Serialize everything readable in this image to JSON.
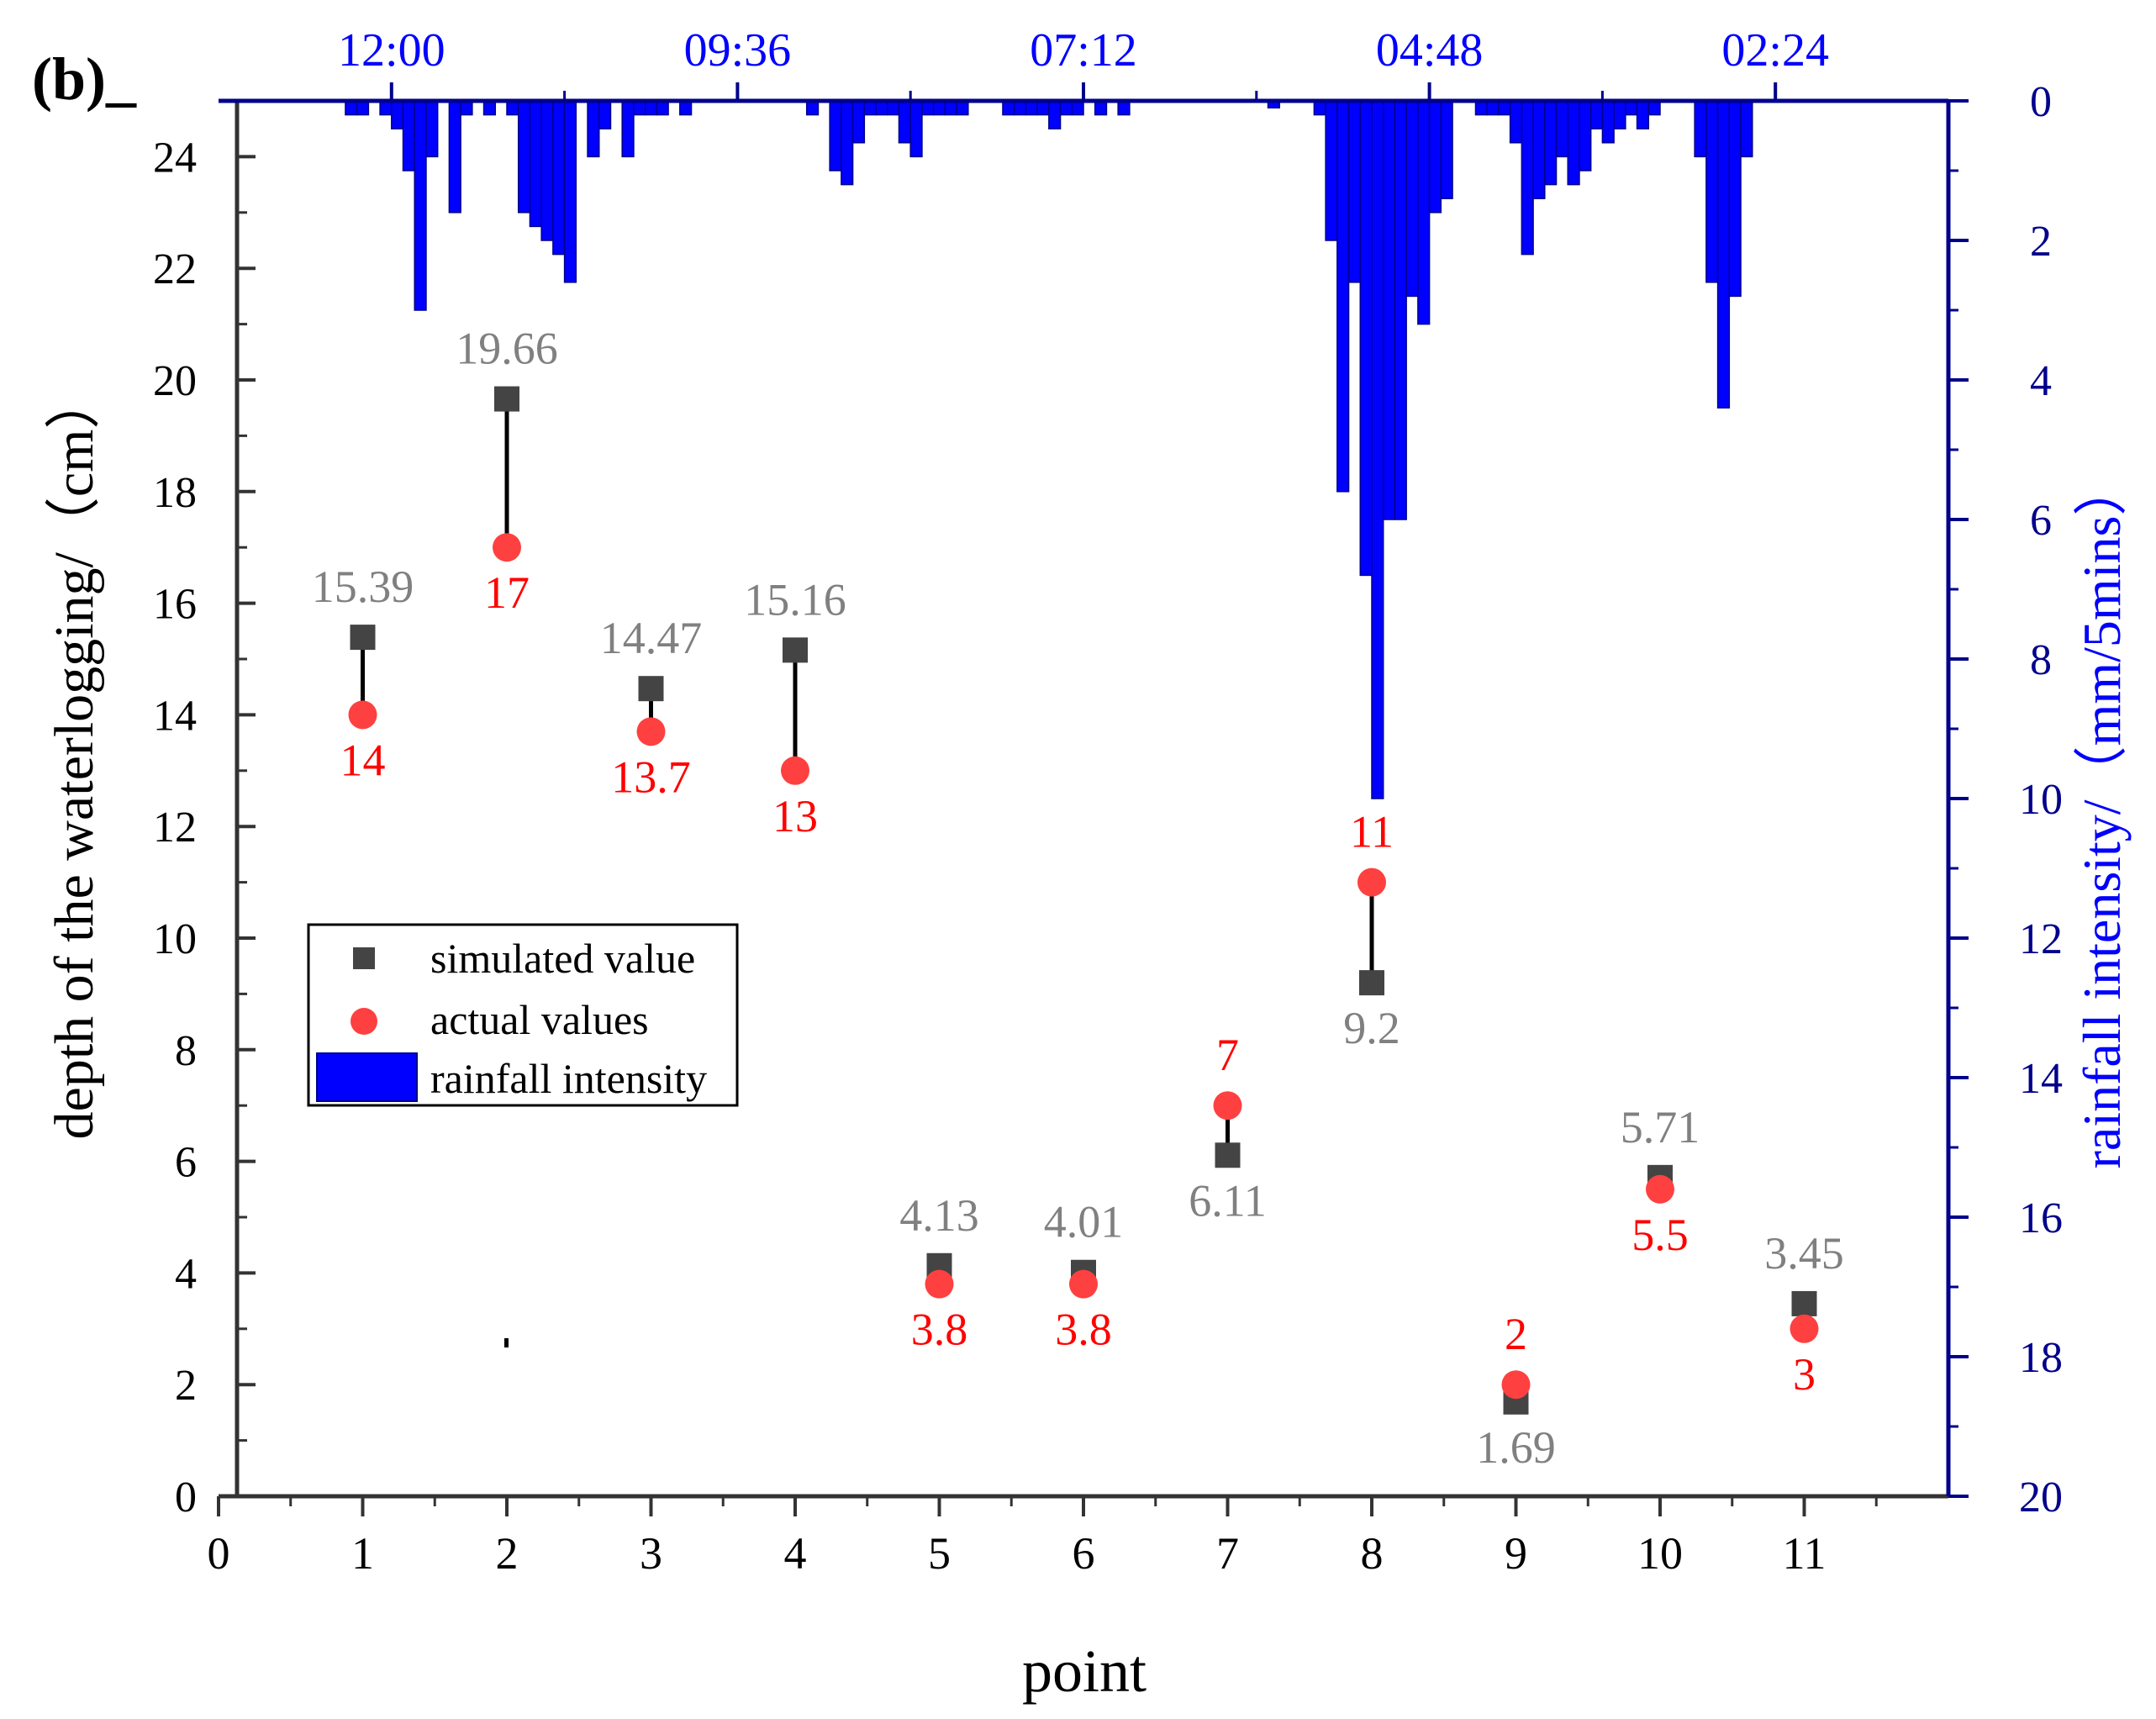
{
  "panel_label": "(b)_",
  "colors": {
    "simulated": "#444444",
    "simulated_label": "#808080",
    "actual": "#FF4040",
    "actual_label": "#FF0000",
    "rain": "#0000FF",
    "rain_edge": "#00008B",
    "right_axis": "#00008B",
    "left_axis": "#333333"
  },
  "chart_data": {
    "type": "scatter",
    "title": "",
    "xlabel": "point",
    "ylabel": "depth of the waterlogging/（cm）",
    "y2label": "rainfall intensity/（mm/5mins）",
    "xlim": [
      0,
      12
    ],
    "ylim": [
      0,
      25
    ],
    "y2lim": [
      0,
      20
    ],
    "y2_inverted": true,
    "x_ticks": [
      0,
      1,
      2,
      3,
      4,
      5,
      6,
      7,
      8,
      9,
      10,
      11
    ],
    "y_ticks": [
      0,
      2,
      4,
      6,
      8,
      10,
      12,
      14,
      16,
      18,
      20,
      22,
      24
    ],
    "y2_ticks": [
      0,
      2,
      4,
      6,
      8,
      10,
      12,
      14,
      16,
      18,
      20
    ],
    "top_axis_ticks": [
      "12:00",
      "09:36",
      "07:12",
      "04:48",
      "02:24"
    ],
    "top_axis_positions": [
      1.2,
      3.6,
      6.0,
      8.4,
      10.8
    ],
    "series": [
      {
        "name": "simulated value",
        "marker": "square",
        "x": [
          1,
          2,
          3,
          4,
          5,
          6,
          7,
          8,
          9,
          10,
          11
        ],
        "values": [
          15.39,
          19.66,
          14.47,
          15.16,
          4.13,
          4.01,
          6.11,
          9.2,
          1.69,
          5.71,
          3.45
        ],
        "labels": [
          "15.39",
          "19.66",
          "14.47",
          "15.16",
          "4.13",
          "4.01",
          "6.11",
          "9.2",
          "1.69",
          "5.71",
          "3.45"
        ]
      },
      {
        "name": "actual values",
        "marker": "circle",
        "x": [
          1,
          2,
          3,
          4,
          5,
          6,
          7,
          8,
          9,
          10,
          11
        ],
        "values": [
          14,
          17,
          13.7,
          13,
          3.8,
          3.8,
          7,
          11,
          2,
          5.5,
          3
        ],
        "labels": [
          "14",
          "17",
          "13.7",
          "13",
          "3.8",
          "3.8",
          "7",
          "11",
          "2",
          "5.5",
          "3"
        ]
      }
    ],
    "rainfall": {
      "name": "rainfall intensity",
      "bar_width": 0.08,
      "x": [
        0.92,
        1.0,
        1.08,
        1.16,
        1.24,
        1.32,
        1.4,
        1.48,
        1.56,
        1.64,
        1.72,
        1.8,
        1.88,
        1.96,
        2.04,
        2.12,
        2.2,
        2.28,
        2.36,
        2.44,
        2.52,
        2.6,
        2.68,
        2.76,
        2.84,
        2.92,
        3.0,
        3.08,
        3.16,
        3.24,
        3.32,
        3.4,
        3.48,
        3.56,
        3.64,
        3.72,
        3.8,
        3.88,
        3.96,
        4.04,
        4.12,
        4.2,
        4.28,
        4.36,
        4.44,
        4.52,
        4.6,
        4.68,
        4.76,
        4.84,
        4.92,
        5.0,
        5.08,
        5.16,
        5.24,
        5.32,
        5.4,
        5.48,
        5.56,
        5.64,
        5.72,
        5.8,
        5.88,
        5.96,
        6.04,
        6.12,
        6.2,
        6.28,
        6.36,
        6.44,
        6.52,
        6.6,
        6.68,
        6.76,
        6.84,
        6.92,
        7.0,
        7.08,
        7.16,
        7.24,
        7.32,
        7.4,
        7.48,
        7.56,
        7.64,
        7.72,
        7.8,
        7.88,
        7.96,
        8.04,
        8.12,
        8.2,
        8.28,
        8.36,
        8.44,
        8.52,
        8.6,
        8.68,
        8.76,
        8.84,
        8.92,
        9.0,
        9.08,
        9.16,
        9.24,
        9.32,
        9.4,
        9.48,
        9.56,
        9.64,
        9.72,
        9.8,
        9.88,
        9.96,
        10.04,
        10.12,
        10.2,
        10.28,
        10.36,
        10.44,
        10.52,
        10.6,
        10.68,
        10.76,
        10.84,
        10.92,
        11.0,
        11.08,
        11.16,
        11.24,
        11.32
      ],
      "values": [
        0.2,
        0.2,
        0,
        0.2,
        0.4,
        1.0,
        3.0,
        0.8,
        0,
        1.6,
        0.2,
        0,
        0.2,
        0,
        0.2,
        1.6,
        1.8,
        2.0,
        2.2,
        2.6,
        0,
        0.8,
        0.4,
        0,
        0.8,
        0.2,
        0.2,
        0.2,
        0,
        0.2,
        0,
        0,
        0,
        0,
        0,
        0,
        0,
        0,
        0,
        0,
        0.2,
        0,
        1.0,
        1.2,
        0.6,
        0.2,
        0.2,
        0.2,
        0.6,
        0.8,
        0.2,
        0.2,
        0.2,
        0.2,
        0,
        0,
        0,
        0.2,
        0.2,
        0.2,
        0.2,
        0.4,
        0.2,
        0.2,
        0,
        0.2,
        0,
        0.2,
        0,
        0,
        0,
        0,
        0,
        0,
        0,
        0,
        0,
        0,
        0,
        0,
        0.1,
        0,
        0,
        0,
        0.2,
        2.0,
        5.6,
        2.6,
        6.8,
        10.0,
        6.0,
        6.0,
        2.8,
        3.2,
        1.6,
        1.4,
        0,
        0,
        0.2,
        0.2,
        0.2,
        0.6,
        2.2,
        1.4,
        1.2,
        0.8,
        1.2,
        1.0,
        0.4,
        0.6,
        0.4,
        0.2,
        0.4,
        0.2,
        0,
        0,
        0,
        0.8,
        2.6,
        4.4,
        2.8,
        0.8,
        0,
        0,
        0,
        0,
        0,
        0,
        0,
        0,
        0
      ]
    },
    "legend": {
      "position": "middle-left",
      "entries": [
        "simulated value",
        "actual values",
        "rainfall intensity"
      ]
    }
  }
}
